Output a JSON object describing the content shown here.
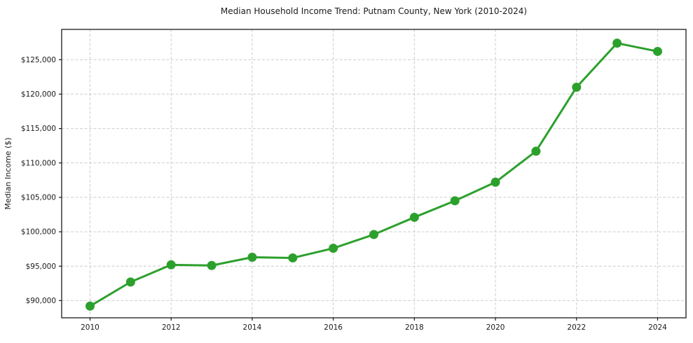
{
  "figure": {
    "background": "#ffffff"
  },
  "chart_data": {
    "type": "line",
    "title": "Median Household Income Trend: Putnam County, New York (2010-2024)",
    "xlabel": "",
    "ylabel": "Median Income ($)",
    "x": [
      2010,
      2011,
      2012,
      2013,
      2014,
      2015,
      2016,
      2017,
      2018,
      2019,
      2020,
      2021,
      2022,
      2023,
      2024
    ],
    "series": [
      {
        "name": "Median Household Income",
        "color": "#2ca02c",
        "marker": "circle",
        "values": [
          89200,
          92700,
          95200,
          95100,
          96300,
          96200,
          97600,
          99600,
          102100,
          104500,
          107200,
          111700,
          121000,
          127400,
          126200
        ]
      }
    ],
    "xlim": [
      2009.3,
      2024.7
    ],
    "ylim": [
      87500,
      129400
    ],
    "xticks": [
      {
        "value": 2010,
        "label": "2010"
      },
      {
        "value": 2012,
        "label": "2012"
      },
      {
        "value": 2014,
        "label": "2014"
      },
      {
        "value": 2016,
        "label": "2016"
      },
      {
        "value": 2018,
        "label": "2018"
      },
      {
        "value": 2020,
        "label": "2020"
      },
      {
        "value": 2022,
        "label": "2022"
      },
      {
        "value": 2024,
        "label": "2024"
      }
    ],
    "yticks": [
      {
        "value": 90000,
        "label": "$90,000"
      },
      {
        "value": 95000,
        "label": "$95,000"
      },
      {
        "value": 100000,
        "label": "$100,000"
      },
      {
        "value": 105000,
        "label": "$105,000"
      },
      {
        "value": 110000,
        "label": "$110,000"
      },
      {
        "value": 115000,
        "label": "$115,000"
      },
      {
        "value": 120000,
        "label": "$120,000"
      },
      {
        "value": 125000,
        "label": "$125,000"
      }
    ],
    "grid": true,
    "grid_style": "dashed",
    "legend": "none",
    "colors": {
      "line": "#2ca02c",
      "marker": "#2ca02c",
      "grid": "#cdcdcd",
      "spine": "#1a1a1a",
      "tick": "#1a1a1a",
      "background": "#ffffff"
    }
  }
}
